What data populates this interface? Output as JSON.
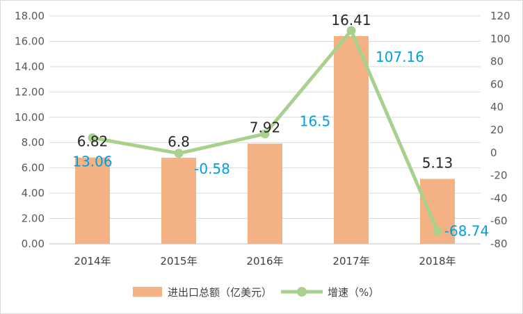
{
  "chart_data": {
    "type": "bar+line",
    "categories": [
      "2014年",
      "2015年",
      "2016年",
      "2017年",
      "2018年"
    ],
    "series": [
      {
        "name": "进出口总额（亿美元）",
        "type": "bar",
        "axis": "left",
        "color": "#f4b183",
        "values": [
          6.82,
          6.8,
          7.92,
          16.41,
          5.13
        ],
        "labels": [
          "6.82",
          "6.8",
          "7.92",
          "16.41",
          "5.13"
        ]
      },
      {
        "name": "增速（%）",
        "type": "line",
        "axis": "right",
        "color": "#a9d18e",
        "label_color": "#00a0e0",
        "values": [
          13.06,
          -0.58,
          16.5,
          107.16,
          -68.74
        ],
        "labels": [
          "13.06",
          "-0.58",
          "16.5",
          "107.16",
          "-68.74"
        ]
      }
    ],
    "y_left": {
      "min": 0,
      "max": 18,
      "ticks": [
        "0.00",
        "2.00",
        "4.00",
        "6.00",
        "8.00",
        "10.00",
        "12.00",
        "14.00",
        "16.00",
        "18.00"
      ]
    },
    "y_right": {
      "min": -80,
      "max": 120,
      "ticks": [
        "-80",
        "-60",
        "-40",
        "-20",
        "0",
        "20",
        "40",
        "60",
        "80",
        "100",
        "120"
      ]
    },
    "grid": true,
    "legend_position": "bottom"
  }
}
